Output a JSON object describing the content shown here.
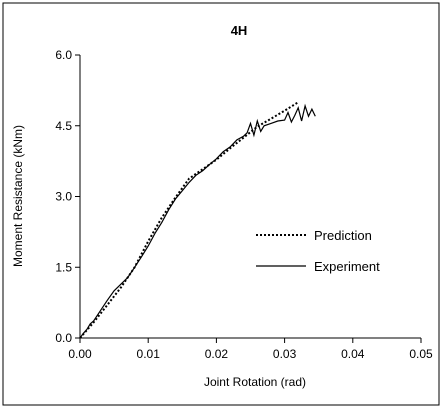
{
  "chart_data": {
    "type": "line",
    "title": "4H",
    "xlabel": "Joint Rotation (rad)",
    "ylabel": "Moment Resistance (kNm)",
    "xlim": [
      0,
      0.05
    ],
    "ylim": [
      0,
      6.0
    ],
    "x_ticks": [
      "0.00",
      "0.01",
      "0.02",
      "0.03",
      "0.04",
      "0.05"
    ],
    "x_tick_values": [
      0,
      0.01,
      0.02,
      0.03,
      0.04,
      0.05
    ],
    "y_ticks": [
      "0.0",
      "1.5",
      "3.0",
      "4.5",
      "6.0"
    ],
    "y_tick_values": [
      0,
      1.5,
      3.0,
      4.5,
      6.0
    ],
    "grid": false,
    "legend_position": "right-middle",
    "series": [
      {
        "name": "Prediction",
        "style": "dotted",
        "color": "#000000",
        "x": [
          0.0,
          0.002,
          0.004,
          0.006,
          0.008,
          0.01,
          0.012,
          0.014,
          0.016,
          0.018,
          0.02,
          0.022,
          0.024,
          0.026,
          0.028,
          0.03,
          0.032
        ],
        "y": [
          0.0,
          0.33,
          0.7,
          1.07,
          1.5,
          2.05,
          2.55,
          2.98,
          3.38,
          3.58,
          3.78,
          4.02,
          4.25,
          4.48,
          4.65,
          4.82,
          5.0
        ]
      },
      {
        "name": "Experiment",
        "style": "solid",
        "color": "#000000",
        "x": [
          0.0,
          0.0005,
          0.001,
          0.0015,
          0.002,
          0.003,
          0.004,
          0.005,
          0.006,
          0.007,
          0.008,
          0.009,
          0.01,
          0.011,
          0.012,
          0.013,
          0.014,
          0.015,
          0.016,
          0.017,
          0.018,
          0.019,
          0.02,
          0.021,
          0.022,
          0.023,
          0.024,
          0.0245,
          0.025,
          0.0255,
          0.026,
          0.0265,
          0.027,
          0.028,
          0.029,
          0.03,
          0.0305,
          0.031,
          0.0315,
          0.032,
          0.0325,
          0.033,
          0.0335,
          0.034,
          0.0345
        ],
        "y": [
          0.0,
          0.1,
          0.18,
          0.3,
          0.36,
          0.58,
          0.8,
          1.0,
          1.14,
          1.28,
          1.5,
          1.72,
          1.95,
          2.22,
          2.45,
          2.72,
          2.95,
          3.12,
          3.3,
          3.45,
          3.55,
          3.68,
          3.8,
          3.95,
          4.05,
          4.2,
          4.28,
          4.35,
          4.55,
          4.3,
          4.6,
          4.38,
          4.5,
          4.55,
          4.6,
          4.62,
          4.78,
          4.58,
          4.72,
          4.88,
          4.6,
          4.92,
          4.7,
          4.85,
          4.7
        ]
      }
    ]
  }
}
